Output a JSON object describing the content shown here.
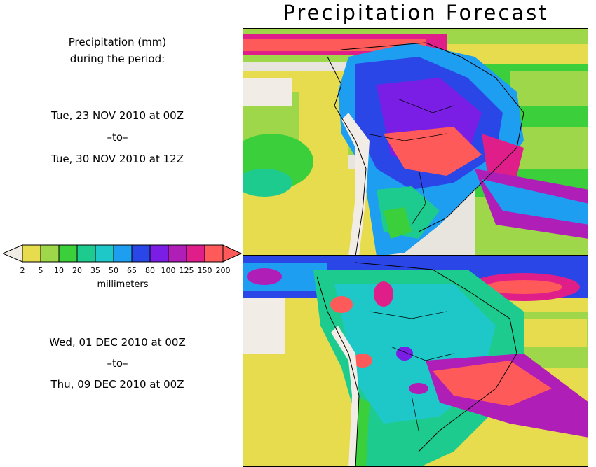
{
  "title": "Precipitation Forecast",
  "legend_header": [
    "Precipitation (mm)",
    "during the period:"
  ],
  "period1": {
    "start": "Tue, 23 NOV 2010 at 00Z",
    "sep": "–to–",
    "end": "Tue, 30 NOV 2010 at 12Z"
  },
  "period2": {
    "start": "Wed, 01 DEC 2010 at 00Z",
    "sep": "–to–",
    "end": "Thu, 09 DEC 2010 at 00Z"
  },
  "colorbar": {
    "unit_label": "millimeters",
    "labels": [
      "2",
      "5",
      "10",
      "20",
      "35",
      "50",
      "65",
      "80",
      "100",
      "125",
      "150",
      "200"
    ],
    "under_color": "#f2ece6",
    "over_color": "#ff5a5a",
    "colors": [
      "#e6dc4e",
      "#9ed84a",
      "#3ccf3c",
      "#1ecb8f",
      "#1ec8c8",
      "#1e9ef0",
      "#2a46e6",
      "#7a1ee6",
      "#b01eb8",
      "#e01e8a",
      "#ff5a5a"
    ]
  }
}
